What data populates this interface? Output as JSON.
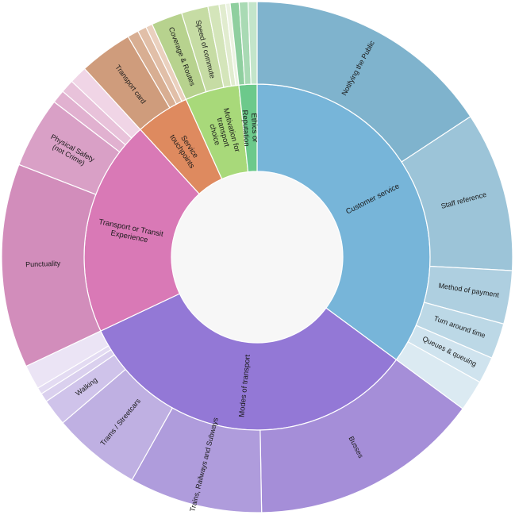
{
  "chart_data": {
    "type": "sunburst",
    "title": "",
    "center_color": "#f7f7f7",
    "categories": [
      {
        "name": "Customer service",
        "color": "#77b5d9",
        "value": 125,
        "children": [
          {
            "name": "Notifying the Public",
            "value": 56,
            "color": "#7fb3cd"
          },
          {
            "name": "Staff reference",
            "value": 36,
            "color": "#9cc4d8"
          },
          {
            "name": "Method of payment",
            "value": 12,
            "color": "#aecfe0"
          },
          {
            "name": "Turn around time",
            "value": 8,
            "color": "#bcd8e6"
          },
          {
            "name": "Queues & queuing",
            "value": 6,
            "color": "#cfe3ee"
          },
          {
            "name": "",
            "value": 7,
            "color": "#dbeaf2"
          }
        ]
      },
      {
        "name": "Modes of transport",
        "color": "#9378d6",
        "value": 117,
        "children": [
          {
            "name": "Busses",
            "value": 52,
            "color": "#a58ed8"
          },
          {
            "name": "Trains, Railways and Subways",
            "value": 30,
            "color": "#af9cdc"
          },
          {
            "name": "Trams / Streetcars",
            "value": 20,
            "color": "#bfb0e2"
          },
          {
            "name": "Walking",
            "value": 6,
            "color": "#cfc3ea"
          },
          {
            "name": "",
            "value": 2,
            "color": "#dad0ee"
          },
          {
            "name": "",
            "value": 1.5,
            "color": "#e3dbf2"
          },
          {
            "name": "",
            "value": 5.5,
            "color": "#ebe4f5"
          }
        ]
      },
      {
        "name": "Transport or Transit Experience",
        "color": "#d979b6",
        "value": 72,
        "children": [
          {
            "name": "Punctuality",
            "value": 46,
            "color": "#d28dbb"
          },
          {
            "name": "Physical Safety (not Crime)",
            "value": 16,
            "color": "#d9a0c6"
          },
          {
            "name": "",
            "value": 3,
            "color": "#e1b1d0"
          },
          {
            "name": "",
            "value": 3,
            "color": "#e8c2da"
          },
          {
            "name": "",
            "value": 4,
            "color": "#f0d5e6"
          }
        ]
      },
      {
        "name": "Service touchpoints",
        "color": "#de8a5f",
        "value": 18,
        "children": [
          {
            "name": "Transport card",
            "value": 12,
            "color": "#cf9c7c"
          },
          {
            "name": "",
            "value": 2.5,
            "color": "#d8ae92"
          },
          {
            "name": "",
            "value": 2,
            "color": "#e1bfa8"
          },
          {
            "name": "",
            "value": 1.5,
            "color": "#ead0be"
          }
        ]
      },
      {
        "name": "Motivation for transport choice",
        "color": "#a8d97a",
        "value": 18,
        "children": [
          {
            "name": "Coverage & Routes",
            "value": 7,
            "color": "#b7d28e"
          },
          {
            "name": "Speed of commute",
            "value": 6,
            "color": "#c6dca4"
          },
          {
            "name": "",
            "value": 2.5,
            "color": "#d4e5ba"
          },
          {
            "name": "",
            "value": 1.5,
            "color": "#e1eccf"
          },
          {
            "name": "",
            "value": 1,
            "color": "#ecf3e2"
          }
        ]
      },
      {
        "name": "Ethics or Reputation",
        "color": "#6cc98b",
        "value": 6,
        "children": [
          {
            "name": "",
            "value": 2,
            "color": "#8fcf9f"
          },
          {
            "name": "",
            "value": 2,
            "color": "#a9dab4"
          },
          {
            "name": "",
            "value": 2,
            "color": "#c3e5ca"
          }
        ]
      }
    ]
  }
}
